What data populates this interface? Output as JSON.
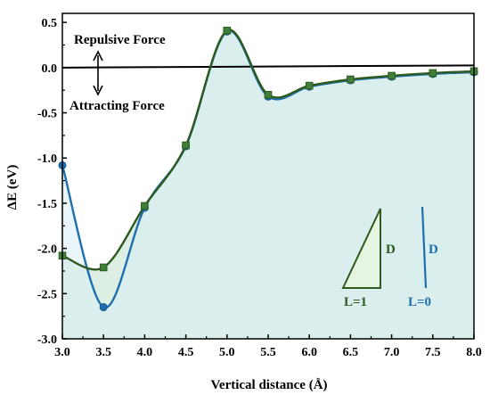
{
  "chart_data": {
    "type": "line",
    "xlabel": "Vertical distance (Å)",
    "ylabel": "ΔE (eV)",
    "xlim": [
      3.0,
      8.0
    ],
    "ylim": [
      -3.0,
      0.6
    ],
    "xticks": [
      "3.0",
      "3.5",
      "4.0",
      "4.5",
      "5.0",
      "5.5",
      "6.0",
      "6.5",
      "7.0",
      "7.5",
      "8.0"
    ],
    "yticks": [
      "0.5",
      "0.0",
      "-0.5",
      "-1.0",
      "-1.5",
      "-2.0",
      "-2.5",
      "-3.0"
    ],
    "grid": false,
    "reference_line": 0.0,
    "series": [
      {
        "name": "L=1",
        "color": "#2d5a1e",
        "marker": "square",
        "x": [
          3.0,
          3.5,
          4.0,
          4.5,
          5.0,
          5.5,
          6.0,
          6.5,
          7.0,
          7.5,
          8.0
        ],
        "y": [
          -2.08,
          -2.21,
          -1.53,
          -0.86,
          0.41,
          -0.3,
          -0.2,
          -0.13,
          -0.09,
          -0.06,
          -0.04
        ]
      },
      {
        "name": "L=0",
        "color": "#1f6fb0",
        "marker": "circle",
        "x": [
          3.0,
          3.5,
          4.0,
          4.5,
          5.0,
          5.5,
          6.0,
          6.5,
          7.0,
          7.5,
          8.0
        ],
        "y": [
          -1.08,
          -2.65,
          -1.55,
          -0.87,
          0.4,
          -0.32,
          -0.21,
          -0.14,
          -0.1,
          -0.07,
          -0.05
        ]
      }
    ],
    "annotations": {
      "repulsive": "Repulsive Force",
      "attracting": "Attracting Force"
    },
    "inset": {
      "left_label": "L=1",
      "left_side": "D",
      "right_label": "L=0",
      "right_side": "D"
    }
  }
}
